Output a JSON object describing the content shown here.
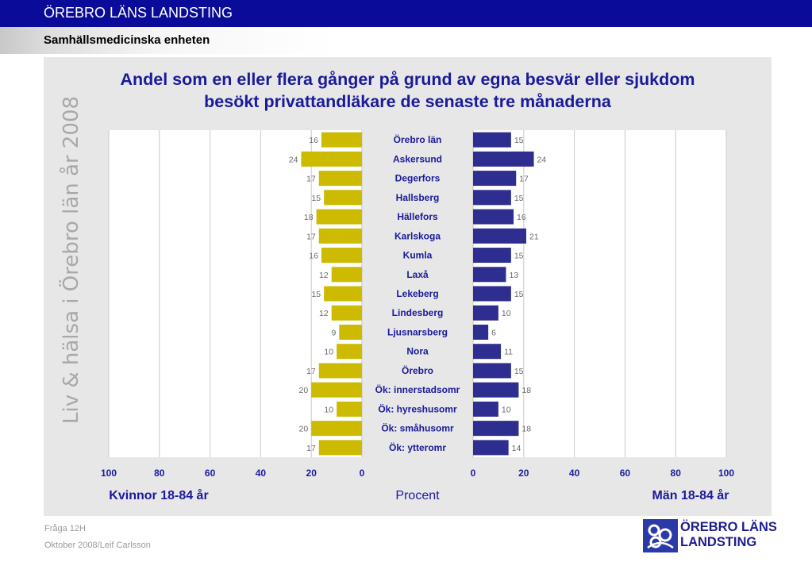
{
  "header": {
    "organization": "ÖREBRO LÄNS LANDSTING",
    "department": "Samhällsmedicinska enheten"
  },
  "side_text": "Liv & hälsa i Örebro län år 2008",
  "footer": {
    "question": "Fråga 12H",
    "date_author": "Oktober 2008/Leif Carlsson"
  },
  "logo": {
    "line1": "ÖREBRO LÄNS",
    "line2": "LANDSTING"
  },
  "colors": {
    "header_bar": "#0b0b99",
    "title": "#1a1a9a",
    "women_bars": "#ccbb00",
    "men_bars": "#2e2e90",
    "panel": "#e7e7e7"
  },
  "chart_data": {
    "type": "bar",
    "orientation": "horizontal-butterfly",
    "title_line1": "Andel som en eller flera gånger på grund av egna besvär eller sjukdom",
    "title_line2": "besökt privattandläkare de senaste tre månaderna",
    "xlabel": "Procent",
    "left_label": "Kvinnor 18-84 år",
    "right_label": "Män 18-84 år",
    "xlim": [
      0,
      100
    ],
    "ticks": [
      0,
      20,
      40,
      60,
      80,
      100
    ],
    "grid": true,
    "categories": [
      "Örebro län",
      "Askersund",
      "Degerfors",
      "Hallsberg",
      "Hällefors",
      "Karlskoga",
      "Kumla",
      "Laxå",
      "Lekeberg",
      "Lindesberg",
      "Ljusnarsberg",
      "Nora",
      "Örebro",
      "Ök: innerstadsomr",
      "Ök: hyreshusomr",
      "Ök: småhusomr",
      "Ök: ytteromr"
    ],
    "series": [
      {
        "name": "Kvinnor 18-84 år",
        "values": [
          16,
          24,
          17,
          15,
          18,
          17,
          16,
          12,
          15,
          12,
          9,
          10,
          17,
          20,
          10,
          20,
          17
        ]
      },
      {
        "name": "Män 18-84 år",
        "values": [
          15,
          24,
          17,
          15,
          16,
          21,
          15,
          13,
          15,
          10,
          6,
          11,
          15,
          18,
          10,
          18,
          14
        ]
      }
    ]
  }
}
